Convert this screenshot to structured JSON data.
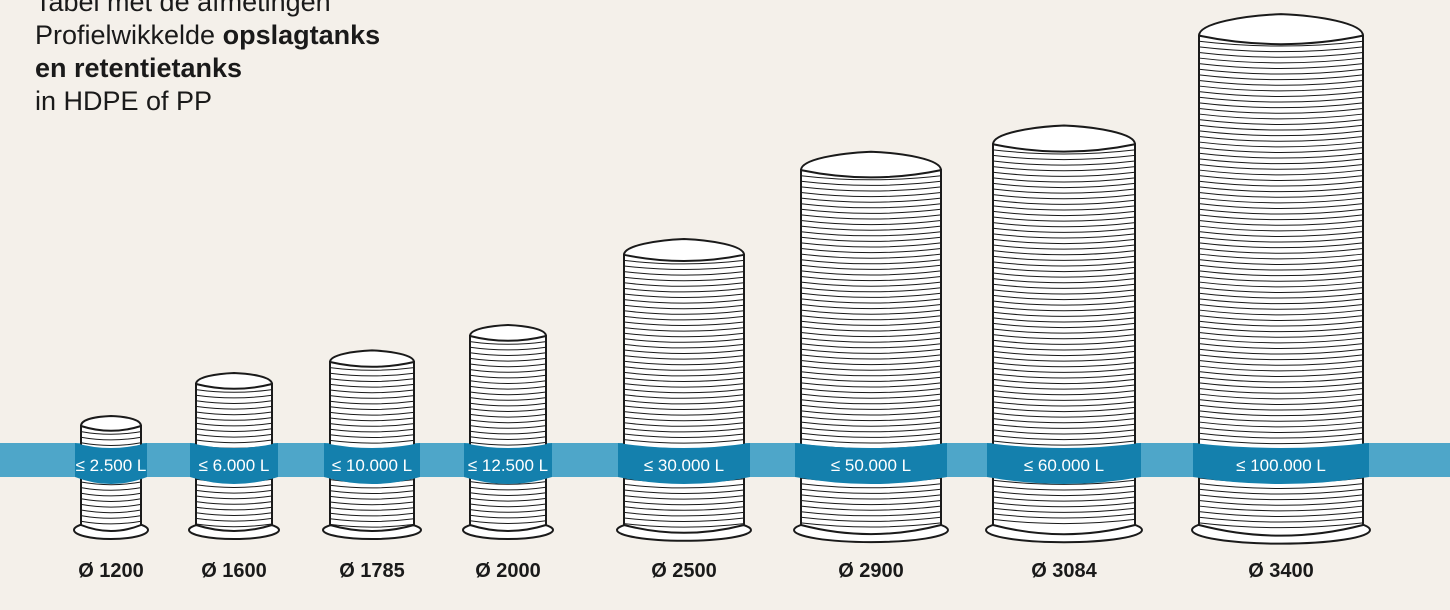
{
  "title": {
    "line1": "Tabel met de afmetingen",
    "line2_plain": "Profielwikkelde ",
    "line2_bold": "opslagtanks",
    "line3_bold": "en retentietanks",
    "line4": "in HDPE of PP"
  },
  "colors": {
    "background": "#f4f0ea",
    "band": "#4ea6c9",
    "band_on_tank": "#1480ad",
    "outline": "#1a1a1a",
    "tank_fill": "#ffffff"
  },
  "tanks": [
    {
      "capacity": "≤ 2.500 L",
      "diameter": "Ø 1200"
    },
    {
      "capacity": "≤ 6.000 L",
      "diameter": "Ø 1600"
    },
    {
      "capacity": "≤ 10.000 L",
      "diameter": "Ø 1785"
    },
    {
      "capacity": "≤ 12.500 L",
      "diameter": "Ø 2000"
    },
    {
      "capacity": "≤ 30.000 L",
      "diameter": "Ø 2500"
    },
    {
      "capacity": "≤ 50.000 L",
      "diameter": "Ø 2900"
    },
    {
      "capacity": "≤ 60.000 L",
      "diameter": "Ø 3084"
    },
    {
      "capacity": "≤ 100.000 L",
      "diameter": "Ø 3400"
    }
  ]
}
